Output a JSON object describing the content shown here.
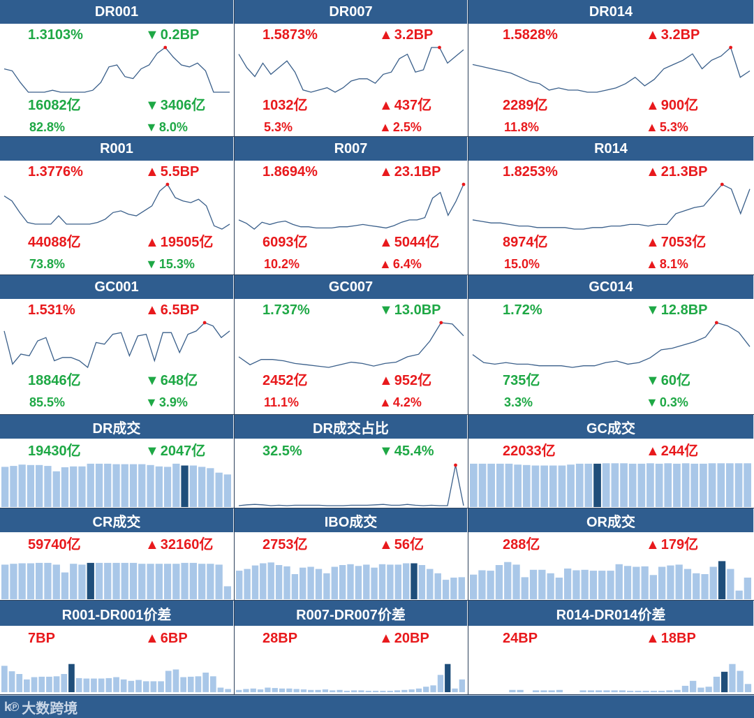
{
  "colors": {
    "up": "#e8191c",
    "down": "#1ea845",
    "header": "#2f5d8f",
    "line": "#3a5f8a",
    "bar": "#a9c7e8",
    "bar_highlight": "#1f4e7a"
  },
  "footer": {
    "logo_text": "大数跨境",
    "logo_mark": "k℗"
  },
  "panels": [
    {
      "title": "DR001",
      "type": "line",
      "rate": "1.3103%",
      "rate_dir": "down",
      "rate_change": "0.2BP",
      "change_dir": "down",
      "volume": "16082亿",
      "volume_dir": "down",
      "volume_change": "3406亿",
      "vchange_dir": "down",
      "share": "82.8%",
      "share_dir": "down",
      "share_change": "8.0%",
      "schange_dir": "down",
      "chart_data": {
        "type": "line",
        "values": [
          1.43,
          1.42,
          1.36,
          1.31,
          1.31,
          1.31,
          1.32,
          1.31,
          1.31,
          1.31,
          1.31,
          1.32,
          1.36,
          1.44,
          1.45,
          1.39,
          1.38,
          1.43,
          1.45,
          1.51,
          1.54,
          1.49,
          1.45,
          1.44,
          1.46,
          1.42,
          1.31,
          1.31,
          1.31
        ],
        "highlight_index": 20
      }
    },
    {
      "title": "DR007",
      "type": "line",
      "rate": "1.5873%",
      "rate_dir": "up",
      "rate_change": "3.2BP",
      "change_dir": "up",
      "volume": "1032亿",
      "volume_dir": "up",
      "volume_change": "437亿",
      "vchange_dir": "up",
      "share": "5.3%",
      "share_dir": "up",
      "share_change": "2.5%",
      "schange_dir": "up",
      "chart_data": {
        "type": "line",
        "values": [
          1.56,
          1.5,
          1.46,
          1.52,
          1.47,
          1.5,
          1.53,
          1.48,
          1.4,
          1.39,
          1.4,
          1.41,
          1.39,
          1.41,
          1.44,
          1.45,
          1.45,
          1.43,
          1.47,
          1.48,
          1.54,
          1.56,
          1.48,
          1.49,
          1.59,
          1.59,
          1.52,
          1.55,
          1.58
        ],
        "highlight_index": 25
      }
    },
    {
      "title": "DR014",
      "type": "line",
      "rate": "1.5828%",
      "rate_dir": "up",
      "rate_change": "3.2BP",
      "change_dir": "up",
      "volume": "2289亿",
      "volume_dir": "up",
      "volume_change": "900亿",
      "vchange_dir": "up",
      "share": "11.8%",
      "share_dir": "up",
      "share_change": "5.3%",
      "schange_dir": "up",
      "chart_data": {
        "type": "line",
        "values": [
          1.5,
          1.49,
          1.48,
          1.47,
          1.46,
          1.44,
          1.42,
          1.41,
          1.38,
          1.39,
          1.38,
          1.38,
          1.37,
          1.37,
          1.38,
          1.39,
          1.41,
          1.44,
          1.4,
          1.43,
          1.48,
          1.5,
          1.52,
          1.55,
          1.48,
          1.52,
          1.54,
          1.58,
          1.44,
          1.47
        ],
        "highlight_index": 27
      }
    },
    {
      "title": "R001",
      "type": "line",
      "rate": "1.3776%",
      "rate_dir": "up",
      "rate_change": "5.5BP",
      "change_dir": "up",
      "volume": "44088亿",
      "volume_dir": "up",
      "volume_change": "19505亿",
      "vchange_dir": "up",
      "share": "73.8%",
      "share_dir": "down",
      "share_change": "15.3%",
      "schange_dir": "down",
      "chart_data": {
        "type": "line",
        "values": [
          1.5,
          1.47,
          1.4,
          1.34,
          1.33,
          1.33,
          1.33,
          1.38,
          1.33,
          1.33,
          1.33,
          1.33,
          1.34,
          1.36,
          1.4,
          1.41,
          1.39,
          1.38,
          1.41,
          1.44,
          1.53,
          1.57,
          1.49,
          1.47,
          1.46,
          1.48,
          1.44,
          1.32,
          1.3,
          1.33
        ],
        "highlight_index": 21
      }
    },
    {
      "title": "R007",
      "type": "line",
      "rate": "1.8694%",
      "rate_dir": "up",
      "rate_change": "23.1BP",
      "change_dir": "up",
      "volume": "6093亿",
      "volume_dir": "up",
      "volume_change": "5044亿",
      "vchange_dir": "up",
      "share": "10.2%",
      "share_dir": "up",
      "share_change": "6.4%",
      "schange_dir": "up",
      "chart_data": {
        "type": "line",
        "values": [
          1.56,
          1.53,
          1.48,
          1.54,
          1.52,
          1.54,
          1.55,
          1.52,
          1.5,
          1.5,
          1.49,
          1.49,
          1.49,
          1.5,
          1.5,
          1.51,
          1.52,
          1.51,
          1.5,
          1.49,
          1.51,
          1.54,
          1.56,
          1.56,
          1.58,
          1.75,
          1.8,
          1.6,
          1.72,
          1.87
        ],
        "highlight_index": 29
      }
    },
    {
      "title": "R014",
      "type": "line",
      "rate": "1.8253%",
      "rate_dir": "up",
      "rate_change": "21.3BP",
      "change_dir": "up",
      "volume": "8974亿",
      "volume_dir": "up",
      "volume_change": "7053亿",
      "vchange_dir": "up",
      "share": "15.0%",
      "share_dir": "up",
      "share_change": "8.1%",
      "schange_dir": "up",
      "chart_data": {
        "type": "line",
        "values": [
          1.56,
          1.55,
          1.54,
          1.54,
          1.53,
          1.52,
          1.52,
          1.51,
          1.51,
          1.51,
          1.51,
          1.5,
          1.5,
          1.51,
          1.51,
          1.52,
          1.52,
          1.53,
          1.53,
          1.52,
          1.53,
          1.53,
          1.6,
          1.62,
          1.64,
          1.65,
          1.72,
          1.79,
          1.76,
          1.6,
          1.76
        ],
        "highlight_index": 27
      }
    },
    {
      "title": "GC001",
      "type": "line",
      "rate": "1.531%",
      "rate_dir": "up",
      "rate_change": "6.5BP",
      "change_dir": "up",
      "volume": "18846亿",
      "volume_dir": "down",
      "volume_change": "648亿",
      "vchange_dir": "down",
      "share": "85.5%",
      "share_dir": "down",
      "share_change": "3.9%",
      "schange_dir": "down",
      "chart_data": {
        "type": "line",
        "values": [
          1.48,
          1.28,
          1.34,
          1.33,
          1.42,
          1.44,
          1.3,
          1.32,
          1.32,
          1.3,
          1.26,
          1.41,
          1.4,
          1.46,
          1.47,
          1.33,
          1.45,
          1.46,
          1.3,
          1.47,
          1.47,
          1.35,
          1.46,
          1.48,
          1.53,
          1.51,
          1.44,
          1.48
        ],
        "highlight_index": 24
      }
    },
    {
      "title": "GC007",
      "type": "line",
      "rate": "1.737%",
      "rate_dir": "down",
      "rate_change": "13.0BP",
      "change_dir": "down",
      "volume": "2452亿",
      "volume_dir": "up",
      "volume_change": "952亿",
      "vchange_dir": "up",
      "share": "11.1%",
      "share_dir": "up",
      "share_change": "4.2%",
      "schange_dir": "up",
      "chart_data": {
        "type": "line",
        "values": [
          1.58,
          1.52,
          1.56,
          1.56,
          1.55,
          1.53,
          1.52,
          1.51,
          1.5,
          1.52,
          1.54,
          1.53,
          1.51,
          1.53,
          1.54,
          1.58,
          1.6,
          1.7,
          1.84,
          1.83,
          1.74
        ],
        "highlight_index": 18
      }
    },
    {
      "title": "GC014",
      "type": "line",
      "rate": "1.72%",
      "rate_dir": "down",
      "rate_change": "12.8BP",
      "change_dir": "down",
      "volume": "735亿",
      "volume_dir": "down",
      "volume_change": "60亿",
      "vchange_dir": "down",
      "share": "3.3%",
      "share_dir": "down",
      "share_change": "0.3%",
      "schange_dir": "down",
      "chart_data": {
        "type": "line",
        "values": [
          1.58,
          1.53,
          1.52,
          1.53,
          1.52,
          1.52,
          1.51,
          1.51,
          1.51,
          1.5,
          1.51,
          1.51,
          1.53,
          1.54,
          1.52,
          1.53,
          1.56,
          1.61,
          1.62,
          1.64,
          1.66,
          1.69,
          1.78,
          1.76,
          1.72,
          1.63
        ],
        "highlight_index": 22
      }
    },
    {
      "title": "DR成交",
      "type": "bar",
      "rate": "19430亿",
      "rate_dir": "down",
      "rate_change": "2047亿",
      "change_dir": "down",
      "chart_data": {
        "type": "bar",
        "values": [
          90,
          92,
          95,
          94,
          94,
          92,
          80,
          89,
          91,
          91,
          97,
          97,
          97,
          96,
          96,
          96,
          96,
          94,
          91,
          90,
          97,
          93,
          93,
          90,
          87,
          77,
          73
        ],
        "highlight_index": 21
      }
    },
    {
      "title": "DR成交占比",
      "type": "line",
      "rate": "32.5%",
      "rate_dir": "down",
      "rate_change": "45.4%",
      "change_dir": "down",
      "chart_data": {
        "type": "line",
        "values": [
          5,
          7,
          8,
          7,
          5,
          6,
          5,
          6,
          6,
          6,
          6,
          5,
          5,
          5,
          6,
          6,
          6,
          7,
          8,
          6,
          6,
          8,
          6,
          5,
          6,
          5,
          5,
          100,
          5
        ],
        "highlight_index": 27
      }
    },
    {
      "title": "GC成交",
      "type": "bar",
      "rate": "22033亿",
      "rate_dir": "up",
      "rate_change": "244亿",
      "change_dir": "up",
      "chart_data": {
        "type": "bar",
        "values": [
          97,
          97,
          97,
          97,
          97,
          95,
          94,
          93,
          93,
          93,
          93,
          95,
          97,
          97,
          97,
          98,
          98,
          98,
          97,
          97,
          98,
          97,
          98,
          97,
          98,
          97,
          97,
          98,
          98,
          98,
          98,
          98
        ],
        "highlight_index": 14
      }
    },
    {
      "title": "CR成交",
      "type": "bar",
      "rate": "59740亿",
      "rate_dir": "up",
      "rate_change": "32160亿",
      "change_dir": "up",
      "chart_data": {
        "type": "bar",
        "values": [
          80,
          82,
          83,
          83,
          84,
          84,
          80,
          62,
          82,
          80,
          84,
          84,
          84,
          84,
          84,
          84,
          82,
          82,
          82,
          82,
          82,
          84,
          84,
          82,
          82,
          80,
          30
        ],
        "highlight_index": 10
      }
    },
    {
      "title": "IBO成交",
      "type": "bar",
      "rate": "2753亿",
      "rate_dir": "up",
      "rate_change": "56亿",
      "change_dir": "up",
      "chart_data": {
        "type": "bar",
        "values": [
          66,
          70,
          78,
          83,
          85,
          79,
          76,
          58,
          73,
          75,
          70,
          60,
          75,
          79,
          81,
          77,
          80,
          73,
          81,
          80,
          80,
          83,
          83,
          79,
          70,
          60,
          45,
          50,
          51
        ],
        "highlight_index": 22
      }
    },
    {
      "title": "OR成交",
      "type": "bar",
      "rate": "288亿",
      "rate_dir": "up",
      "rate_change": "179亿",
      "change_dir": "up",
      "chart_data": {
        "type": "bar",
        "values": [
          57,
          67,
          66,
          79,
          86,
          80,
          51,
          68,
          68,
          60,
          50,
          71,
          67,
          68,
          66,
          66,
          66,
          81,
          77,
          75,
          76,
          56,
          75,
          78,
          80,
          70,
          60,
          58,
          75,
          88,
          70,
          20,
          50
        ],
        "highlight_index": 29
      }
    },
    {
      "title": "R001-DR001价差",
      "type": "bar",
      "rate": "7BP",
      "rate_dir": "up",
      "rate_change": "6BP",
      "change_dir": "up",
      "chart_data": {
        "type": "bar",
        "values": [
          58,
          46,
          40,
          28,
          33,
          34,
          34,
          35,
          40,
          62,
          31,
          30,
          30,
          30,
          31,
          33,
          28,
          25,
          27,
          24,
          24,
          24,
          47,
          50,
          33,
          34,
          35,
          43,
          35,
          10,
          7
        ],
        "highlight_index": 9
      }
    },
    {
      "title": "R007-DR007价差",
      "type": "bar",
      "rate": "28BP",
      "rate_dir": "up",
      "rate_change": "20BP",
      "change_dir": "up",
      "chart_data": {
        "type": "bar",
        "values": [
          5,
          7,
          8,
          6,
          10,
          9,
          8,
          8,
          7,
          6,
          5,
          5,
          6,
          4,
          5,
          3,
          4,
          4,
          3,
          3,
          3,
          3,
          4,
          5,
          6,
          8,
          12,
          15,
          38,
          62,
          8,
          28
        ],
        "highlight_index": 29
      }
    },
    {
      "title": "R014-DR014价差",
      "type": "bar",
      "rate": "24BP",
      "rate_dir": "up",
      "rate_change": "18BP",
      "change_dir": "up",
      "chart_data": {
        "type": "bar",
        "values": [
          0,
          0,
          0,
          0,
          0,
          5,
          5,
          0,
          4,
          4,
          4,
          5,
          0,
          0,
          4,
          4,
          4,
          4,
          4,
          4,
          3,
          3,
          3,
          3,
          3,
          4,
          5,
          14,
          25,
          10,
          12,
          34,
          45,
          62,
          47,
          18
        ],
        "highlight_index": 32
      }
    }
  ]
}
